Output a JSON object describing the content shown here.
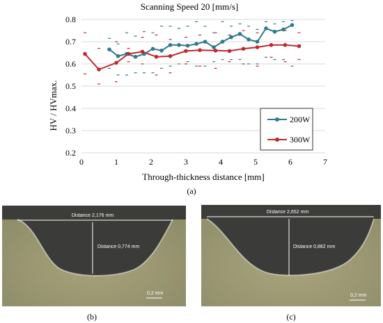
{
  "chart_data": {
    "type": "line",
    "title": "Scanning Speed 20 [mm/s]",
    "xlabel": "Through-thickness distance [mm]",
    "ylabel": "HV / HVmax.",
    "xlim": [
      0,
      7
    ],
    "ylim": [
      0.2,
      0.8
    ],
    "xticks": [
      "0",
      "1",
      "2",
      "3",
      "4",
      "5",
      "6",
      "7"
    ],
    "yticks": [
      "0.2",
      "0.3",
      "0.4",
      "0.5",
      "0.6",
      "0.7",
      "0.8"
    ],
    "grid": "horizontal",
    "legend_position": "lower-right",
    "series": [
      {
        "name": "200W",
        "color": "#2e7a8c",
        "x": [
          0.8,
          1.05,
          1.3,
          1.55,
          1.8,
          2.05,
          2.3,
          2.55,
          2.8,
          3.05,
          3.3,
          3.55,
          3.8,
          4.05,
          4.3,
          4.55,
          4.8,
          5.05,
          5.3,
          5.55,
          5.8,
          6.05
        ],
        "y": [
          0.665,
          0.635,
          0.645,
          0.632,
          0.645,
          0.668,
          0.66,
          0.685,
          0.685,
          0.682,
          0.69,
          0.7,
          0.675,
          0.7,
          0.72,
          0.735,
          0.71,
          0.7,
          0.76,
          0.745,
          0.755,
          0.775
        ],
        "error_high": [
          0.715,
          0.69,
          0.74,
          0.725,
          0.745,
          0.74,
          0.77,
          0.77,
          0.76,
          0.77,
          0.79,
          0.77,
          0.74,
          0.79,
          0.77,
          0.78,
          0.77,
          0.755,
          0.79,
          0.78,
          0.79,
          0.795
        ],
        "error_low": [
          0.58,
          0.55,
          0.55,
          0.56,
          0.56,
          0.56,
          0.58,
          0.59,
          0.6,
          0.61,
          0.59,
          0.59,
          0.61,
          0.62,
          0.62,
          0.62,
          0.6,
          0.6,
          0.63,
          0.62,
          0.62,
          0.59
        ]
      },
      {
        "name": "300W",
        "color": "#c0282d",
        "x": [
          0.1,
          0.5,
          1.0,
          1.35,
          1.75,
          2.15,
          2.55,
          3.0,
          3.4,
          3.85,
          4.25,
          4.65,
          5.05,
          5.45,
          5.85,
          6.25
        ],
        "y": [
          0.645,
          0.575,
          0.605,
          0.645,
          0.655,
          0.632,
          0.635,
          0.658,
          0.662,
          0.66,
          0.658,
          0.668,
          0.675,
          0.685,
          0.685,
          0.68
        ],
        "error_high": [
          0.74,
          0.67,
          0.7,
          0.67,
          0.72,
          0.73,
          0.71,
          0.72,
          0.73,
          0.74,
          0.73,
          0.75,
          0.74,
          0.75,
          0.75,
          0.74
        ],
        "error_low": [
          0.555,
          0.51,
          0.52,
          0.61,
          0.6,
          0.55,
          0.56,
          0.6,
          0.59,
          0.58,
          0.61,
          0.6,
          0.59,
          0.63,
          0.61,
          0.62
        ]
      }
    ]
  },
  "captions": {
    "a": "(a)",
    "b": "(b)",
    "c": "(c)"
  },
  "micrographs": [
    {
      "distance_width": "Distance 2,176 mm",
      "distance_depth": "Distance 0,774 mm",
      "scale": "0,2 mm"
    },
    {
      "distance_width": "Distance 2,652 mm",
      "distance_depth": "Distance 0,882 mm",
      "scale": "0,2 mm"
    }
  ]
}
